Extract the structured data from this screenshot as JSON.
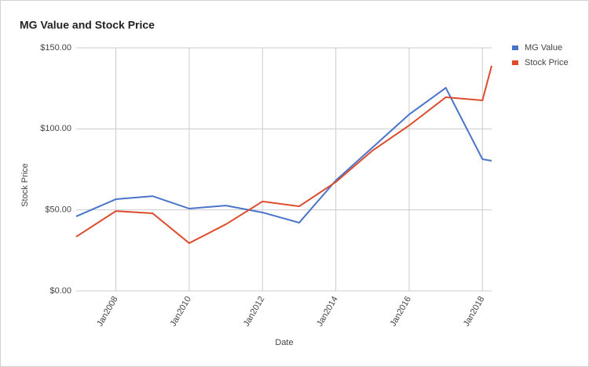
{
  "chart_data": {
    "type": "line",
    "title": "MG Value and Stock Price",
    "x_label": "Date",
    "y_label": "Stock Price",
    "x": [
      "2006-12",
      "2008-01",
      "2009-01",
      "2010-01",
      "2011-01",
      "2012-01",
      "2013-01",
      "2014-01",
      "2015-01",
      "2016-01",
      "2017-01",
      "2018-01",
      "2018-04"
    ],
    "series": [
      {
        "name": "MG Value",
        "color": "#4a74c9",
        "values": [
          46,
          56.6,
          58.5,
          50.8,
          52.7,
          48.4,
          42.1,
          68.2,
          88.5,
          108.9,
          125.3,
          81.3,
          80.3
        ]
      },
      {
        "name": "Stock Price",
        "color": "#dc4b2c",
        "values": [
          33.4,
          49.3,
          47.9,
          29.5,
          41.1,
          55.2,
          52.2,
          67.2,
          86.6,
          102.1,
          119.5,
          117.6,
          138.9
        ]
      }
    ],
    "xlim": [
      "2006-12",
      "2018-04"
    ],
    "xticks": [
      {
        "value": "2008-01",
        "label": "Jan2008"
      },
      {
        "value": "2010-01",
        "label": "Jan2010"
      },
      {
        "value": "2012-01",
        "label": "Jan2012"
      },
      {
        "value": "2014-01",
        "label": "Jan2014"
      },
      {
        "value": "2016-01",
        "label": "Jan2016"
      },
      {
        "value": "2018-01",
        "label": "Jan2018"
      }
    ],
    "ylim": [
      0,
      150
    ],
    "yticks": [
      {
        "value": 0,
        "label": "$0.00"
      },
      {
        "value": 50,
        "label": "$50.00"
      },
      {
        "value": 100,
        "label": "$100.00"
      },
      {
        "value": 150,
        "label": "$150.00"
      }
    ],
    "grid": true,
    "legend": "right"
  }
}
